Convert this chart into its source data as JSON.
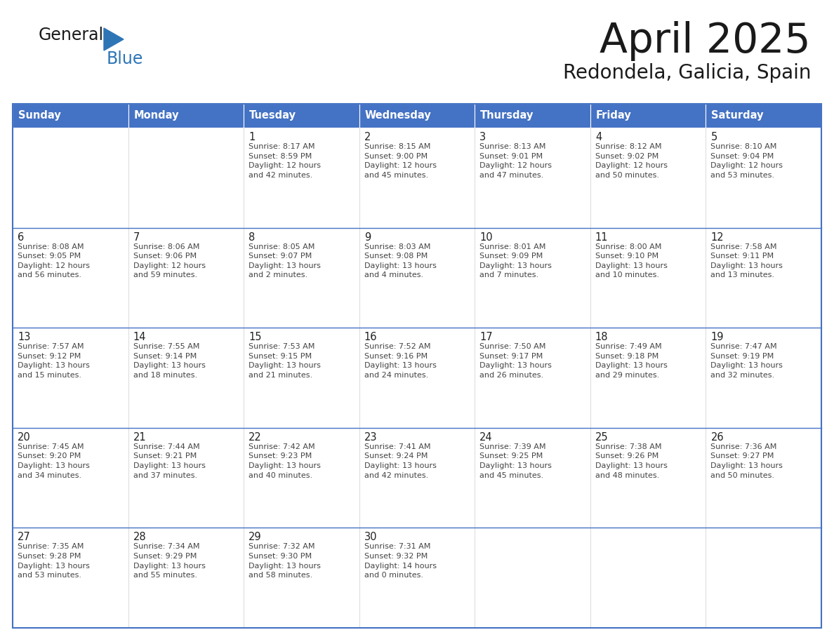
{
  "title": "April 2025",
  "subtitle": "Redondela, Galicia, Spain",
  "header_bg": "#4472C4",
  "header_text_color": "#FFFFFF",
  "border_color": "#4472C4",
  "row_line_color": "#4472C4",
  "text_color": "#333333",
  "day_headers": [
    "Sunday",
    "Monday",
    "Tuesday",
    "Wednesday",
    "Thursday",
    "Friday",
    "Saturday"
  ],
  "logo_black": "#1a1a1a",
  "logo_blue": "#2E75B6",
  "weeks": [
    [
      {
        "day": "",
        "text": ""
      },
      {
        "day": "",
        "text": ""
      },
      {
        "day": "1",
        "text": "Sunrise: 8:17 AM\nSunset: 8:59 PM\nDaylight: 12 hours\nand 42 minutes."
      },
      {
        "day": "2",
        "text": "Sunrise: 8:15 AM\nSunset: 9:00 PM\nDaylight: 12 hours\nand 45 minutes."
      },
      {
        "day": "3",
        "text": "Sunrise: 8:13 AM\nSunset: 9:01 PM\nDaylight: 12 hours\nand 47 minutes."
      },
      {
        "day": "4",
        "text": "Sunrise: 8:12 AM\nSunset: 9:02 PM\nDaylight: 12 hours\nand 50 minutes."
      },
      {
        "day": "5",
        "text": "Sunrise: 8:10 AM\nSunset: 9:04 PM\nDaylight: 12 hours\nand 53 minutes."
      }
    ],
    [
      {
        "day": "6",
        "text": "Sunrise: 8:08 AM\nSunset: 9:05 PM\nDaylight: 12 hours\nand 56 minutes."
      },
      {
        "day": "7",
        "text": "Sunrise: 8:06 AM\nSunset: 9:06 PM\nDaylight: 12 hours\nand 59 minutes."
      },
      {
        "day": "8",
        "text": "Sunrise: 8:05 AM\nSunset: 9:07 PM\nDaylight: 13 hours\nand 2 minutes."
      },
      {
        "day": "9",
        "text": "Sunrise: 8:03 AM\nSunset: 9:08 PM\nDaylight: 13 hours\nand 4 minutes."
      },
      {
        "day": "10",
        "text": "Sunrise: 8:01 AM\nSunset: 9:09 PM\nDaylight: 13 hours\nand 7 minutes."
      },
      {
        "day": "11",
        "text": "Sunrise: 8:00 AM\nSunset: 9:10 PM\nDaylight: 13 hours\nand 10 minutes."
      },
      {
        "day": "12",
        "text": "Sunrise: 7:58 AM\nSunset: 9:11 PM\nDaylight: 13 hours\nand 13 minutes."
      }
    ],
    [
      {
        "day": "13",
        "text": "Sunrise: 7:57 AM\nSunset: 9:12 PM\nDaylight: 13 hours\nand 15 minutes."
      },
      {
        "day": "14",
        "text": "Sunrise: 7:55 AM\nSunset: 9:14 PM\nDaylight: 13 hours\nand 18 minutes."
      },
      {
        "day": "15",
        "text": "Sunrise: 7:53 AM\nSunset: 9:15 PM\nDaylight: 13 hours\nand 21 minutes."
      },
      {
        "day": "16",
        "text": "Sunrise: 7:52 AM\nSunset: 9:16 PM\nDaylight: 13 hours\nand 24 minutes."
      },
      {
        "day": "17",
        "text": "Sunrise: 7:50 AM\nSunset: 9:17 PM\nDaylight: 13 hours\nand 26 minutes."
      },
      {
        "day": "18",
        "text": "Sunrise: 7:49 AM\nSunset: 9:18 PM\nDaylight: 13 hours\nand 29 minutes."
      },
      {
        "day": "19",
        "text": "Sunrise: 7:47 AM\nSunset: 9:19 PM\nDaylight: 13 hours\nand 32 minutes."
      }
    ],
    [
      {
        "day": "20",
        "text": "Sunrise: 7:45 AM\nSunset: 9:20 PM\nDaylight: 13 hours\nand 34 minutes."
      },
      {
        "day": "21",
        "text": "Sunrise: 7:44 AM\nSunset: 9:21 PM\nDaylight: 13 hours\nand 37 minutes."
      },
      {
        "day": "22",
        "text": "Sunrise: 7:42 AM\nSunset: 9:23 PM\nDaylight: 13 hours\nand 40 minutes."
      },
      {
        "day": "23",
        "text": "Sunrise: 7:41 AM\nSunset: 9:24 PM\nDaylight: 13 hours\nand 42 minutes."
      },
      {
        "day": "24",
        "text": "Sunrise: 7:39 AM\nSunset: 9:25 PM\nDaylight: 13 hours\nand 45 minutes."
      },
      {
        "day": "25",
        "text": "Sunrise: 7:38 AM\nSunset: 9:26 PM\nDaylight: 13 hours\nand 48 minutes."
      },
      {
        "day": "26",
        "text": "Sunrise: 7:36 AM\nSunset: 9:27 PM\nDaylight: 13 hours\nand 50 minutes."
      }
    ],
    [
      {
        "day": "27",
        "text": "Sunrise: 7:35 AM\nSunset: 9:28 PM\nDaylight: 13 hours\nand 53 minutes."
      },
      {
        "day": "28",
        "text": "Sunrise: 7:34 AM\nSunset: 9:29 PM\nDaylight: 13 hours\nand 55 minutes."
      },
      {
        "day": "29",
        "text": "Sunrise: 7:32 AM\nSunset: 9:30 PM\nDaylight: 13 hours\nand 58 minutes."
      },
      {
        "day": "30",
        "text": "Sunrise: 7:31 AM\nSunset: 9:32 PM\nDaylight: 14 hours\nand 0 minutes."
      },
      {
        "day": "",
        "text": ""
      },
      {
        "day": "",
        "text": ""
      },
      {
        "day": "",
        "text": ""
      }
    ]
  ]
}
